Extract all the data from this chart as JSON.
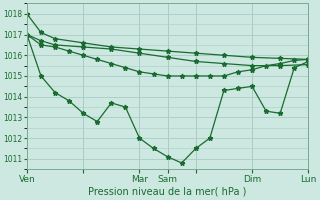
{
  "background_color": "#cce8e0",
  "grid_color": "#aaccC4",
  "line_color": "#1a6b30",
  "xlabel": "Pression niveau de la mer( hPa )",
  "ylim": [
    1010.5,
    1018.5
  ],
  "yticks": [
    1011,
    1012,
    1013,
    1014,
    1015,
    1016,
    1017,
    1018
  ],
  "xlim": [
    0,
    120
  ],
  "xtick_positions": [
    0,
    24,
    48,
    60,
    72,
    96,
    120
  ],
  "xtick_labels": [
    "Ven",
    "",
    "Mar",
    "Sam",
    "",
    "Dim",
    "Lun"
  ],
  "series1_x": [
    0,
    6,
    12,
    24,
    36,
    48,
    60,
    72,
    84,
    96,
    108,
    120
  ],
  "series1_y": [
    1018.0,
    1017.1,
    1016.8,
    1016.6,
    1016.4,
    1016.3,
    1016.2,
    1016.1,
    1016.0,
    1015.9,
    1015.85,
    1015.8
  ],
  "series2_x": [
    0,
    6,
    12,
    24,
    36,
    48,
    60,
    72,
    84,
    96,
    108,
    120
  ],
  "series2_y": [
    1017.0,
    1016.7,
    1016.5,
    1016.4,
    1016.3,
    1016.1,
    1015.9,
    1015.7,
    1015.6,
    1015.5,
    1015.5,
    1015.55
  ],
  "series3_x": [
    0,
    6,
    12,
    18,
    24,
    30,
    36,
    42,
    48,
    54,
    60,
    66,
    72,
    78,
    84,
    90,
    96,
    102,
    108,
    114,
    120
  ],
  "series3_y": [
    1017.0,
    1016.5,
    1016.4,
    1016.2,
    1016.0,
    1015.8,
    1015.6,
    1015.4,
    1015.2,
    1015.1,
    1015.0,
    1015.0,
    1015.0,
    1015.0,
    1015.0,
    1015.2,
    1015.3,
    1015.5,
    1015.6,
    1015.75,
    1015.8
  ],
  "series4_x": [
    0,
    6,
    12,
    18,
    24,
    30,
    36,
    42,
    48,
    54,
    60,
    66,
    72,
    78,
    84,
    90,
    96,
    102,
    108,
    114,
    120
  ],
  "series4_y": [
    1017.0,
    1015.0,
    1014.2,
    1013.8,
    1013.2,
    1012.8,
    1013.7,
    1013.5,
    1012.0,
    1011.5,
    1011.1,
    1010.8,
    1011.5,
    1012.0,
    1014.3,
    1014.4,
    1014.5,
    1013.3,
    1013.2,
    1015.4,
    1015.7
  ]
}
